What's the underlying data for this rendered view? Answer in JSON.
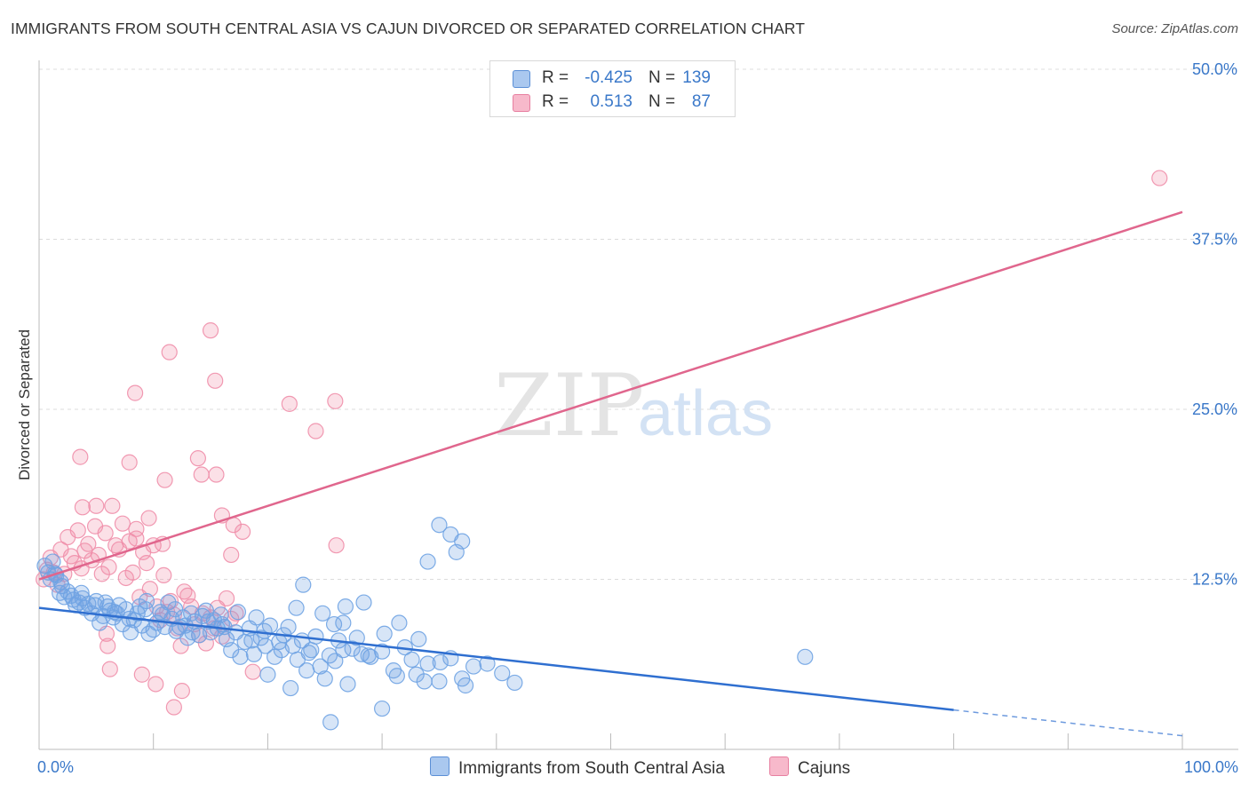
{
  "title": "IMMIGRANTS FROM SOUTH CENTRAL ASIA VS CAJUN DIVORCED OR SEPARATED CORRELATION CHART",
  "source": "Source: ZipAtlas.com",
  "watermark": {
    "zip": "ZIP",
    "atlas": "atlas"
  },
  "legend": {
    "r_label": "R =",
    "n_label": "N =",
    "rows": [
      {
        "series": "Immigrants from South Central Asia",
        "r": "-0.425",
        "n": "139",
        "fill": "#aac8ef",
        "stroke": "#5b8fd6"
      },
      {
        "series": "Cajuns",
        "r": "0.513",
        "n": "87",
        "fill": "#f7b9cb",
        "stroke": "#e77fa0"
      }
    ]
  },
  "colors": {
    "blue_point": "#6fa3e3",
    "blue_line": "#2f6fd0",
    "pink_point": "#f08eaa",
    "pink_line": "#e0668d",
    "tick_label": "#3a78c9",
    "grid": "#dcdcdc"
  },
  "chart_data": {
    "type": "scatter",
    "title": "IMMIGRANTS FROM SOUTH CENTRAL ASIA VS CAJUN DIVORCED OR SEPARATED CORRELATION CHART",
    "xlabel": "",
    "ylabel": "Divorced or Separated",
    "xlim": [
      0,
      100
    ],
    "ylim": [
      0,
      50
    ],
    "x_tick_labels": [
      "0.0%",
      "100.0%"
    ],
    "y_ticks": [
      12.5,
      25.0,
      37.5,
      50.0
    ],
    "y_tick_labels": [
      "12.5%",
      "25.0%",
      "37.5%",
      "50.0%"
    ],
    "grid": true,
    "legend_position": "top-center",
    "series": [
      {
        "name": "Immigrants from South Central Asia",
        "r": -0.425,
        "n": 139,
        "trend": {
          "x": [
            0,
            80,
            100
          ],
          "y": [
            10.4,
            2.9,
            1.0
          ],
          "dashed_from_x": 80
        },
        "points": [
          [
            0.5,
            13.5
          ],
          [
            0.8,
            13.0
          ],
          [
            1.0,
            12.5
          ],
          [
            1.2,
            13.8
          ],
          [
            1.5,
            12.8
          ],
          [
            1.8,
            11.5
          ],
          [
            2.0,
            12.0
          ],
          [
            2.2,
            11.2
          ],
          [
            2.5,
            11.6
          ],
          [
            3.0,
            11.0
          ],
          [
            3.2,
            10.6
          ],
          [
            3.5,
            10.8
          ],
          [
            3.8,
            11.1
          ],
          [
            4.0,
            10.4
          ],
          [
            4.3,
            10.7
          ],
          [
            4.6,
            10.0
          ],
          [
            5.0,
            10.9
          ],
          [
            5.3,
            9.3
          ],
          [
            5.6,
            9.8
          ],
          [
            6.0,
            10.5
          ],
          [
            6.2,
            10.2
          ],
          [
            6.5,
            9.7
          ],
          [
            6.8,
            10.0
          ],
          [
            7.0,
            10.6
          ],
          [
            7.3,
            9.2
          ],
          [
            7.6,
            10.3
          ],
          [
            8.0,
            8.6
          ],
          [
            8.3,
            9.5
          ],
          [
            8.6,
            10.0
          ],
          [
            9.0,
            9.1
          ],
          [
            9.3,
            10.3
          ],
          [
            9.6,
            8.5
          ],
          [
            10.0,
            8.8
          ],
          [
            10.3,
            9.3
          ],
          [
            10.6,
            10.1
          ],
          [
            11.0,
            9.0
          ],
          [
            11.3,
            10.8
          ],
          [
            11.6,
            9.6
          ],
          [
            12.0,
            8.7
          ],
          [
            12.3,
            9.0
          ],
          [
            12.6,
            9.7
          ],
          [
            13.0,
            8.2
          ],
          [
            13.3,
            10.0
          ],
          [
            13.6,
            9.4
          ],
          [
            14.0,
            8.4
          ],
          [
            14.3,
            9.8
          ],
          [
            14.6,
            10.2
          ],
          [
            15.0,
            8.6
          ],
          [
            15.3,
            9.5
          ],
          [
            15.6,
            8.9
          ],
          [
            16.0,
            9.2
          ],
          [
            16.4,
            8.1
          ],
          [
            16.8,
            7.3
          ],
          [
            17.2,
            8.6
          ],
          [
            17.6,
            6.8
          ],
          [
            18.0,
            7.9
          ],
          [
            18.4,
            8.9
          ],
          [
            18.8,
            7.0
          ],
          [
            19.0,
            9.7
          ],
          [
            19.4,
            8.2
          ],
          [
            19.8,
            7.6
          ],
          [
            20.2,
            9.1
          ],
          [
            20.6,
            6.8
          ],
          [
            21.0,
            7.9
          ],
          [
            21.4,
            8.4
          ],
          [
            21.8,
            9.0
          ],
          [
            22.2,
            7.6
          ],
          [
            22.6,
            6.6
          ],
          [
            23.0,
            8.0
          ],
          [
            23.4,
            5.8
          ],
          [
            23.8,
            7.3
          ],
          [
            24.2,
            8.3
          ],
          [
            24.6,
            6.1
          ],
          [
            25.0,
            5.2
          ],
          [
            25.4,
            6.9
          ],
          [
            25.8,
            9.2
          ],
          [
            26.2,
            8.0
          ],
          [
            26.6,
            7.3
          ],
          [
            27.0,
            4.8
          ],
          [
            27.4,
            7.4
          ],
          [
            27.8,
            8.2
          ],
          [
            28.2,
            7.0
          ],
          [
            29.0,
            6.8
          ],
          [
            30.0,
            7.2
          ],
          [
            31.0,
            5.8
          ],
          [
            32.0,
            7.5
          ],
          [
            33.0,
            5.5
          ],
          [
            34.0,
            6.3
          ],
          [
            35.0,
            5.0
          ],
          [
            36.0,
            6.7
          ],
          [
            37.0,
            5.2
          ],
          [
            38.0,
            6.1
          ],
          [
            35.0,
            16.5
          ],
          [
            36.0,
            15.8
          ],
          [
            37.0,
            15.3
          ],
          [
            36.5,
            14.5
          ],
          [
            34.0,
            13.8
          ],
          [
            20.0,
            5.5
          ],
          [
            22.0,
            4.5
          ],
          [
            30.0,
            3.0
          ],
          [
            25.5,
            2.0
          ],
          [
            22.5,
            10.4
          ],
          [
            24.8,
            10.0
          ],
          [
            26.6,
            9.3
          ],
          [
            28.4,
            10.8
          ],
          [
            30.2,
            8.5
          ],
          [
            31.5,
            9.3
          ],
          [
            33.2,
            8.1
          ],
          [
            35.1,
            6.4
          ],
          [
            37.3,
            4.7
          ],
          [
            39.2,
            6.3
          ],
          [
            40.5,
            5.6
          ],
          [
            41.6,
            4.9
          ],
          [
            67.0,
            6.8
          ],
          [
            1.4,
            12.9
          ],
          [
            2.8,
            11.3
          ],
          [
            4.9,
            10.6
          ],
          [
            6.6,
            10.1
          ],
          [
            8.8,
            10.5
          ],
          [
            10.8,
            9.9
          ],
          [
            12.8,
            9.1
          ],
          [
            14.8,
            9.4
          ],
          [
            16.2,
            9.0
          ],
          [
            18.6,
            8.0
          ],
          [
            21.2,
            7.3
          ],
          [
            23.6,
            7.1
          ],
          [
            25.9,
            6.5
          ],
          [
            7.9,
            9.6
          ],
          [
            9.4,
            10.9
          ],
          [
            11.9,
            10.3
          ],
          [
            13.4,
            8.6
          ],
          [
            15.9,
            9.9
          ],
          [
            17.4,
            10.1
          ],
          [
            19.7,
            8.7
          ],
          [
            26.8,
            10.5
          ],
          [
            28.8,
            6.9
          ],
          [
            31.3,
            5.4
          ],
          [
            32.6,
            6.6
          ],
          [
            33.7,
            5.0
          ],
          [
            1.9,
            12.3
          ],
          [
            3.7,
            11.5
          ],
          [
            5.8,
            10.8
          ],
          [
            23.1,
            12.1
          ]
        ]
      },
      {
        "name": "Cajuns",
        "r": 0.513,
        "n": 87,
        "trend": {
          "x": [
            0,
            100
          ],
          "y": [
            12.5,
            39.5
          ]
        },
        "points": [
          [
            0.4,
            12.5
          ],
          [
            0.7,
            13.2
          ],
          [
            1.0,
            14.1
          ],
          [
            1.3,
            13.0
          ],
          [
            1.6,
            12.1
          ],
          [
            1.9,
            14.7
          ],
          [
            2.2,
            12.9
          ],
          [
            2.5,
            15.6
          ],
          [
            2.8,
            14.2
          ],
          [
            3.1,
            13.7
          ],
          [
            3.4,
            16.1
          ],
          [
            3.7,
            13.3
          ],
          [
            4.0,
            14.6
          ],
          [
            4.3,
            15.1
          ],
          [
            4.6,
            13.9
          ],
          [
            4.9,
            16.4
          ],
          [
            5.2,
            14.3
          ],
          [
            5.5,
            12.9
          ],
          [
            5.8,
            15.9
          ],
          [
            6.1,
            13.4
          ],
          [
            6.4,
            17.9
          ],
          [
            6.7,
            15.0
          ],
          [
            7.0,
            14.7
          ],
          [
            7.3,
            16.6
          ],
          [
            7.6,
            12.6
          ],
          [
            7.9,
            15.3
          ],
          [
            8.2,
            13.0
          ],
          [
            8.5,
            15.5
          ],
          [
            8.8,
            11.2
          ],
          [
            9.1,
            14.5
          ],
          [
            9.4,
            13.7
          ],
          [
            9.7,
            11.8
          ],
          [
            10.0,
            15.0
          ],
          [
            10.3,
            10.5
          ],
          [
            10.6,
            9.5
          ],
          [
            10.9,
            12.8
          ],
          [
            11.2,
            10.1
          ],
          [
            11.5,
            10.9
          ],
          [
            11.8,
            9.9
          ],
          [
            12.1,
            8.9
          ],
          [
            12.4,
            7.6
          ],
          [
            12.7,
            11.6
          ],
          [
            13.0,
            11.3
          ],
          [
            13.3,
            10.5
          ],
          [
            13.6,
            9.2
          ],
          [
            14.0,
            8.4
          ],
          [
            14.3,
            10.0
          ],
          [
            14.6,
            7.8
          ],
          [
            15.0,
            9.7
          ],
          [
            15.3,
            8.9
          ],
          [
            15.6,
            10.4
          ],
          [
            16.0,
            8.3
          ],
          [
            16.4,
            11.1
          ],
          [
            16.8,
            9.6
          ],
          [
            17.2,
            10.0
          ],
          [
            8.4,
            26.2
          ],
          [
            11.4,
            29.2
          ],
          [
            11.0,
            19.8
          ],
          [
            13.9,
            21.4
          ],
          [
            14.2,
            20.2
          ],
          [
            16.0,
            17.2
          ],
          [
            17.0,
            16.5
          ],
          [
            21.9,
            25.4
          ],
          [
            25.9,
            25.6
          ],
          [
            24.2,
            23.4
          ],
          [
            26.0,
            15.0
          ],
          [
            15.0,
            30.8
          ],
          [
            15.4,
            27.1
          ],
          [
            16.8,
            14.3
          ],
          [
            15.5,
            20.2
          ],
          [
            3.6,
            21.5
          ],
          [
            3.8,
            17.8
          ],
          [
            5.0,
            17.9
          ],
          [
            5.9,
            8.5
          ],
          [
            6.2,
            5.9
          ],
          [
            9.0,
            5.5
          ],
          [
            10.2,
            4.8
          ],
          [
            11.8,
            3.1
          ],
          [
            12.5,
            4.3
          ],
          [
            8.5,
            16.2
          ],
          [
            6.0,
            7.6
          ],
          [
            17.8,
            16.0
          ],
          [
            18.7,
            5.7
          ],
          [
            98.0,
            42.0
          ],
          [
            7.9,
            21.1
          ],
          [
            9.6,
            17.0
          ],
          [
            10.8,
            15.1
          ]
        ]
      }
    ]
  }
}
